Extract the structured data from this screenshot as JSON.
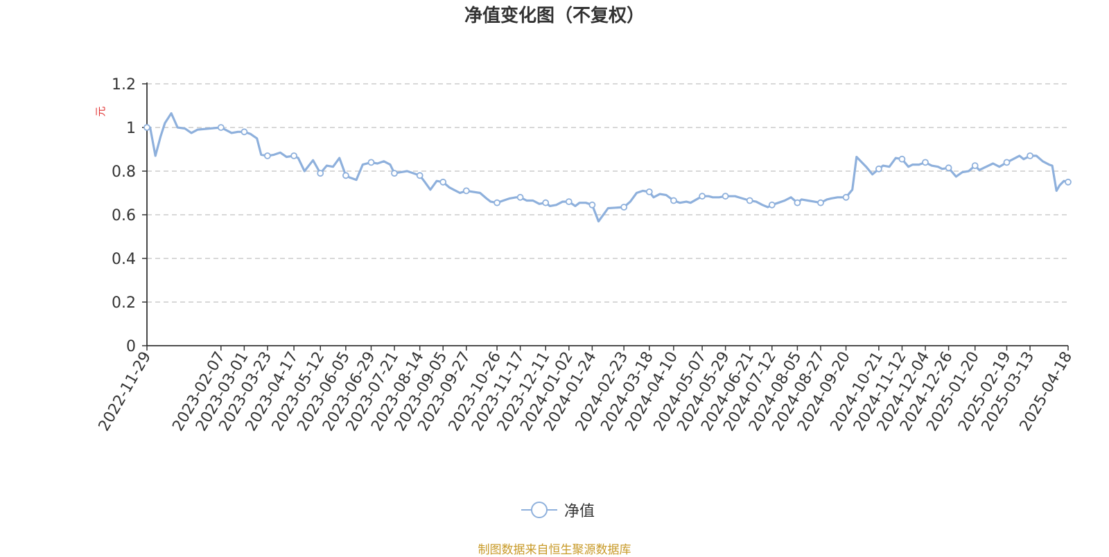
{
  "chart_data": {
    "type": "line",
    "title": "净值变化图（不复权）",
    "ylabel": "元",
    "ylim": [
      0,
      1.2
    ],
    "yticks": [
      0,
      0.2,
      0.4,
      0.6,
      0.8,
      1,
      1.2
    ],
    "grid": true,
    "legend_position": "bottom-center",
    "source": "制图数据来自恒生聚源数据库",
    "colors": {
      "line": "#8eb0dc",
      "axis": "#333333",
      "grid": "#cccccc",
      "ylabel": "#e03030",
      "source": "#c89a28"
    },
    "x_tick_labels": [
      "2022-11-29",
      "2023-02-07",
      "2023-03-01",
      "2023-03-23",
      "2023-04-17",
      "2023-05-12",
      "2023-06-05",
      "2023-06-29",
      "2023-07-21",
      "2023-08-14",
      "2023-09-05",
      "2023-09-27",
      "2023-10-26",
      "2023-11-17",
      "2023-12-11",
      "2024-01-02",
      "2024-01-24",
      "2024-02-23",
      "2024-03-18",
      "2024-04-10",
      "2024-05-07",
      "2024-05-29",
      "2024-06-21",
      "2024-07-12",
      "2024-08-05",
      "2024-08-27",
      "2024-09-20",
      "2024-10-21",
      "2024-11-12",
      "2024-12-04",
      "2024-12-26",
      "2025-01-20",
      "2025-02-19",
      "2025-03-13",
      "2025-04-18"
    ],
    "series": [
      {
        "name": "净值",
        "x": [
          "2022-11-29",
          "2022-12-02",
          "2022-12-07",
          "2022-12-12",
          "2022-12-16",
          "2022-12-22",
          "2022-12-28",
          "2023-01-04",
          "2023-01-10",
          "2023-01-16",
          "2023-02-07",
          "2023-02-13",
          "2023-02-17",
          "2023-02-23",
          "2023-03-01",
          "2023-03-07",
          "2023-03-13",
          "2023-03-17",
          "2023-03-23",
          "2023-03-29",
          "2023-04-04",
          "2023-04-10",
          "2023-04-17",
          "2023-04-21",
          "2023-04-27",
          "2023-05-05",
          "2023-05-12",
          "2023-05-18",
          "2023-05-24",
          "2023-05-30",
          "2023-06-05",
          "2023-06-09",
          "2023-06-15",
          "2023-06-21",
          "2023-06-29",
          "2023-07-05",
          "2023-07-11",
          "2023-07-17",
          "2023-07-21",
          "2023-07-27",
          "2023-08-02",
          "2023-08-08",
          "2023-08-14",
          "2023-08-18",
          "2023-08-24",
          "2023-08-30",
          "2023-09-05",
          "2023-09-11",
          "2023-09-15",
          "2023-09-21",
          "2023-09-27",
          "2023-10-10",
          "2023-10-16",
          "2023-10-20",
          "2023-10-26",
          "2023-11-01",
          "2023-11-07",
          "2023-11-13",
          "2023-11-17",
          "2023-11-23",
          "2023-11-29",
          "2023-12-05",
          "2023-12-11",
          "2023-12-15",
          "2023-12-21",
          "2023-12-27",
          "2024-01-02",
          "2024-01-08",
          "2024-01-12",
          "2024-01-18",
          "2024-01-24",
          "2024-01-30",
          "2024-02-05",
          "2024-02-08",
          "2024-02-23",
          "2024-02-29",
          "2024-03-06",
          "2024-03-12",
          "2024-03-18",
          "2024-03-22",
          "2024-03-28",
          "2024-04-03",
          "2024-04-10",
          "2024-04-16",
          "2024-04-22",
          "2024-04-26",
          "2024-05-07",
          "2024-05-13",
          "2024-05-17",
          "2024-05-23",
          "2024-05-29",
          "2024-06-04",
          "2024-06-07",
          "2024-06-14",
          "2024-06-21",
          "2024-06-27",
          "2024-07-03",
          "2024-07-08",
          "2024-07-12",
          "2024-07-18",
          "2024-07-24",
          "2024-07-30",
          "2024-08-05",
          "2024-08-09",
          "2024-08-15",
          "2024-08-21",
          "2024-08-27",
          "2024-09-02",
          "2024-09-06",
          "2024-09-12",
          "2024-09-20",
          "2024-09-26",
          "2024-09-30",
          "2024-10-09",
          "2024-10-15",
          "2024-10-21",
          "2024-10-25",
          "2024-10-31",
          "2024-11-06",
          "2024-11-12",
          "2024-11-18",
          "2024-11-22",
          "2024-11-28",
          "2024-12-04",
          "2024-12-10",
          "2024-12-16",
          "2024-12-20",
          "2024-12-26",
          "2025-01-02",
          "2025-01-08",
          "2025-01-14",
          "2025-01-20",
          "2025-01-24",
          "2025-02-06",
          "2025-02-12",
          "2025-02-19",
          "2025-02-25",
          "2025-03-03",
          "2025-03-07",
          "2025-03-13",
          "2025-03-19",
          "2025-03-25",
          "2025-03-31",
          "2025-04-03",
          "2025-04-07",
          "2025-04-10",
          "2025-04-14",
          "2025-04-18"
        ],
        "values": [
          1.0,
          1.0,
          0.87,
          0.96,
          1.02,
          1.065,
          1.0,
          0.995,
          0.975,
          0.99,
          1.0,
          0.985,
          0.975,
          0.98,
          0.98,
          0.97,
          0.95,
          0.875,
          0.87,
          0.875,
          0.885,
          0.865,
          0.87,
          0.86,
          0.8,
          0.85,
          0.79,
          0.825,
          0.82,
          0.86,
          0.78,
          0.77,
          0.76,
          0.83,
          0.84,
          0.835,
          0.845,
          0.83,
          0.79,
          0.795,
          0.8,
          0.79,
          0.78,
          0.755,
          0.715,
          0.755,
          0.75,
          0.725,
          0.715,
          0.7,
          0.71,
          0.7,
          0.675,
          0.66,
          0.655,
          0.665,
          0.675,
          0.68,
          0.68,
          0.665,
          0.665,
          0.65,
          0.655,
          0.64,
          0.645,
          0.66,
          0.66,
          0.64,
          0.655,
          0.655,
          0.645,
          0.57,
          0.61,
          0.63,
          0.635,
          0.66,
          0.7,
          0.71,
          0.705,
          0.68,
          0.695,
          0.69,
          0.665,
          0.655,
          0.66,
          0.655,
          0.685,
          0.685,
          0.68,
          0.68,
          0.685,
          0.685,
          0.685,
          0.675,
          0.665,
          0.66,
          0.645,
          0.635,
          0.645,
          0.655,
          0.665,
          0.68,
          0.655,
          0.67,
          0.665,
          0.66,
          0.655,
          0.67,
          0.675,
          0.68,
          0.68,
          0.715,
          0.865,
          0.82,
          0.785,
          0.81,
          0.825,
          0.82,
          0.86,
          0.855,
          0.82,
          0.83,
          0.83,
          0.84,
          0.825,
          0.82,
          0.81,
          0.815,
          0.775,
          0.795,
          0.8,
          0.825,
          0.805,
          0.835,
          0.82,
          0.84,
          0.855,
          0.87,
          0.855,
          0.87,
          0.87,
          0.845,
          0.83,
          0.825,
          0.71,
          0.735,
          0.755,
          0.75
        ]
      }
    ],
    "marker_indices": [
      0,
      10,
      14,
      18,
      22,
      26,
      30,
      34,
      38,
      42,
      46,
      50,
      54,
      58,
      62,
      66,
      70,
      74,
      78,
      82,
      86,
      90,
      94,
      98,
      102,
      106,
      110,
      115,
      119,
      123,
      127,
      131,
      135,
      139,
      147
    ]
  },
  "legend": {
    "label": "净值",
    "icon": "circle-line-legend-icon"
  }
}
